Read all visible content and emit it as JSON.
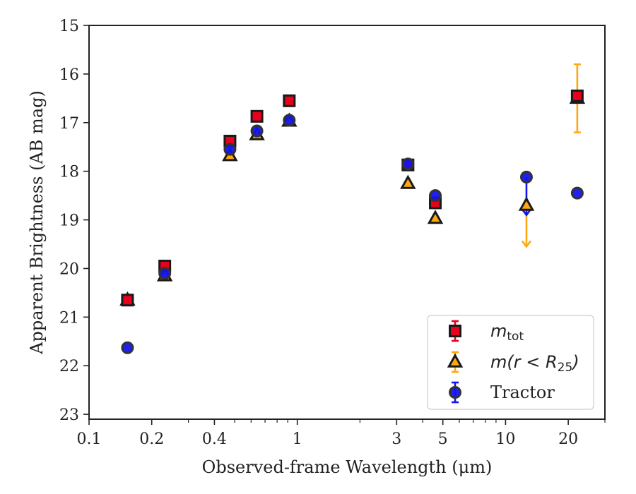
{
  "chart_data": {
    "type": "scatter",
    "title": "",
    "xlabel": "Observed-frame Wavelength (μm)",
    "ylabel": "Apparent Brightness (AB mag)",
    "xscale": "log",
    "xlim": [
      0.1,
      30
    ],
    "ylim": [
      23.1,
      15
    ],
    "y_inverted": true,
    "x_ticks": [
      {
        "value": 0.1,
        "label": "0.1"
      },
      {
        "value": 0.2,
        "label": "0.2"
      },
      {
        "value": 0.4,
        "label": "0.4"
      },
      {
        "value": 1,
        "label": "1"
      },
      {
        "value": 3,
        "label": "3"
      },
      {
        "value": 5,
        "label": "5"
      },
      {
        "value": 10,
        "label": "10"
      },
      {
        "value": 20,
        "label": "20"
      }
    ],
    "x_minor_ticks": [
      0.3,
      0.5,
      0.6,
      0.7,
      0.8,
      0.9,
      2,
      4,
      6,
      7,
      8,
      9,
      30
    ],
    "y_ticks": [
      {
        "value": 15,
        "label": "15"
      },
      {
        "value": 16,
        "label": "16"
      },
      {
        "value": 17,
        "label": "17"
      },
      {
        "value": 18,
        "label": "18"
      },
      {
        "value": 19,
        "label": "19"
      },
      {
        "value": 20,
        "label": "20"
      },
      {
        "value": 21,
        "label": "21"
      },
      {
        "value": 22,
        "label": "22"
      },
      {
        "value": 23,
        "label": "23"
      }
    ],
    "grid": false,
    "legend_position": "bottom-right",
    "series": [
      {
        "name": "m_tot",
        "legend_main": "m",
        "legend_sub": "tot",
        "marker": "square",
        "color": "#e8001c",
        "edge_color": "#1a1a1a",
        "points": [
          {
            "x": 0.153,
            "y": 20.65
          },
          {
            "x": 0.231,
            "y": 19.95
          },
          {
            "x": 0.475,
            "y": 17.38
          },
          {
            "x": 0.64,
            "y": 16.87
          },
          {
            "x": 0.915,
            "y": 16.55
          },
          {
            "x": 3.4,
            "y": 17.87,
            "err": 0.08
          },
          {
            "x": 4.6,
            "y": 18.65,
            "err": 0.1
          },
          {
            "x": 22.1,
            "y": 16.45
          }
        ]
      },
      {
        "name": "m(r < R25)",
        "legend_main": "m(r < R",
        "legend_sub": "25",
        "legend_tail": ")",
        "marker": "triangle",
        "color": "#ffa812",
        "edge_color": "#1a1a1a",
        "points": [
          {
            "x": 0.153,
            "y": 20.65
          },
          {
            "x": 0.231,
            "y": 20.15
          },
          {
            "x": 0.475,
            "y": 17.68
          },
          {
            "x": 0.64,
            "y": 17.25
          },
          {
            "x": 0.915,
            "y": 16.97
          },
          {
            "x": 3.4,
            "y": 18.25
          },
          {
            "x": 4.6,
            "y": 18.97
          },
          {
            "x": 12.6,
            "y": 18.7,
            "upper_limit_to": 19.55
          },
          {
            "x": 22.1,
            "y": 16.5,
            "err": 0.7
          }
        ]
      },
      {
        "name": "Tractor",
        "marker": "circle",
        "color": "#1414ee",
        "edge_color": "#333333",
        "points": [
          {
            "x": 0.153,
            "y": 21.63
          },
          {
            "x": 0.231,
            "y": 20.1
          },
          {
            "x": 0.475,
            "y": 17.55
          },
          {
            "x": 0.64,
            "y": 17.17
          },
          {
            "x": 0.915,
            "y": 16.95
          },
          {
            "x": 3.4,
            "y": 17.85
          },
          {
            "x": 4.6,
            "y": 18.5
          },
          {
            "x": 12.6,
            "y": 18.12,
            "upper_limit_to": 18.9
          },
          {
            "x": 22.1,
            "y": 18.45
          }
        ]
      }
    ]
  }
}
